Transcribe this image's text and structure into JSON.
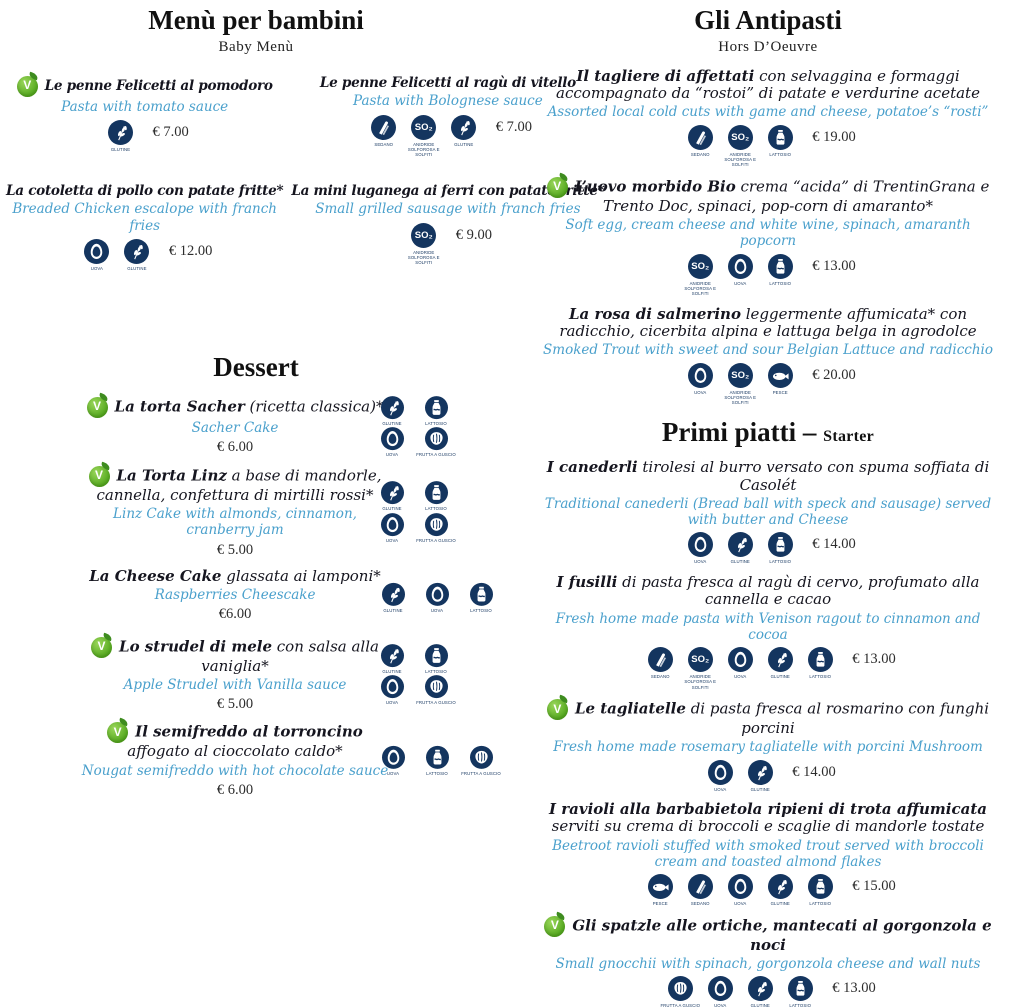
{
  "vegetarian_badge": {
    "label": "V"
  },
  "sulfites_glyph": "SO₂",
  "colors": {
    "translation_blue": "#4aa0cc",
    "icon_navy": "#14355f",
    "badge_green": "#5cb531"
  },
  "allergen_labels": {
    "gluten": "GLUTINE",
    "sulfites": "ANIDRIDE SOLFOROSA E SOLFITI",
    "egg": "UOVA",
    "milk": "LATTOSIO",
    "celery": "SEDANO",
    "fish": "PESCE",
    "nuts": "FRUTTA A GUSCIO"
  },
  "sections": {
    "bambini": {
      "title": "Menù per bambini",
      "subtitle": "Baby Menù",
      "items": [
        {
          "vegetarian": true,
          "name": "Le penne Felicetti al pomodoro",
          "desc": "",
          "translation": "Pasta with tomato sauce",
          "price": "€ 7.00",
          "allergens": [
            "gluten"
          ]
        },
        {
          "vegetarian": false,
          "name": "Le penne Felicetti al ragù di vitello",
          "desc": "",
          "translation": "Pasta with Bolognese sauce",
          "price": "€ 7.00",
          "allergens": [
            "celery",
            "sulfites",
            "gluten"
          ]
        },
        {
          "vegetarian": false,
          "name": "La cotoletta di pollo con patate fritte*",
          "desc": "",
          "translation": "Breaded Chicken escalope with franch fries",
          "price": "€ 12.00",
          "allergens": [
            "egg",
            "gluten"
          ]
        },
        {
          "vegetarian": false,
          "name": "La mini luganega ai ferri con patate fritte*",
          "desc": "",
          "translation": "Small grilled sausage with franch fries",
          "price": "€ 9.00",
          "allergens": [
            "sulfites"
          ]
        }
      ]
    },
    "dessert": {
      "title": "Dessert",
      "items": [
        {
          "vegetarian": true,
          "name": "La torta Sacher",
          "desc": " (ricetta classica)*",
          "translation": "Sacher Cake",
          "price": "€ 6.00",
          "allergens": [
            "gluten",
            "milk",
            "egg",
            "nuts"
          ]
        },
        {
          "vegetarian": true,
          "name": "La Torta Linz",
          "desc": " a base di mandorle, cannella, confettura di mirtilli rossi*",
          "translation": "Linz Cake with almonds, cinnamon, cranberry jam",
          "price": "€ 5.00",
          "allergens": [
            "gluten",
            "milk",
            "egg",
            "nuts"
          ]
        },
        {
          "vegetarian": false,
          "name": "La Cheese Cake",
          "desc": " glassata ai lamponi*",
          "translation": "Raspberries Cheescake",
          "price": "€6.00",
          "allergens": [
            "gluten",
            "egg",
            "milk"
          ]
        },
        {
          "vegetarian": true,
          "name": "Lo strudel di mele",
          "desc": " con salsa alla vaniglia*",
          "translation": "Apple Strudel with Vanilla sauce",
          "price": "€ 5.00",
          "allergens": [
            "gluten",
            "milk",
            "egg",
            "nuts"
          ]
        },
        {
          "vegetarian": true,
          "name": "Il semifreddo al torroncino",
          "desc": " affogato al cioccolato caldo*",
          "translation": "Nougat semifreddo with hot chocolate sauce",
          "price": "€ 6.00",
          "allergens": [
            "egg",
            "milk",
            "nuts"
          ]
        }
      ]
    },
    "antipasti": {
      "title": "Gli Antipasti",
      "subtitle": "Hors D’Oeuvre",
      "items": [
        {
          "vegetarian": false,
          "name": "Il tagliere di affettati",
          "desc": " con selvaggina e formaggi accompagnato da “rostoi” di patate e verdurine acetate",
          "translation": "Assorted local cold cuts with game and cheese, potatoe’s “rosti”",
          "price": "€ 19.00",
          "allergens": [
            "celery",
            "sulfites",
            "milk"
          ]
        },
        {
          "vegetarian": true,
          "name": "L’uovo morbido Bio",
          "desc": " crema “acida” di TrentinGrana e Trento Doc, spinaci, pop-corn di amaranto*",
          "translation": "Soft egg, cream cheese and white wine, spinach, amaranth popcorn",
          "price": "€ 13.00",
          "allergens": [
            "sulfites",
            "egg",
            "milk"
          ]
        },
        {
          "vegetarian": false,
          "name": "La rosa di salmerino",
          "desc": " leggermente affumicata* con radicchio, cicerbita alpina e lattuga belga in agrodolce",
          "translation": "Smoked Trout with sweet and sour Belgian Lattuce and radicchio",
          "price": "€ 20.00",
          "allergens": [
            "egg",
            "sulfites",
            "fish"
          ]
        }
      ]
    },
    "primi": {
      "title": "Primi piatti",
      "dash": "–",
      "subtitle_inline": "Starter",
      "items": [
        {
          "vegetarian": false,
          "name": "I canederli",
          "desc": " tirolesi al burro versato con spuma soffiata di Casolét",
          "translation": "Traditional canederli (Bread ball with speck and sausage) served with butter and Cheese",
          "price": "€ 14.00",
          "allergens": [
            "egg",
            "gluten",
            "milk"
          ]
        },
        {
          "vegetarian": false,
          "name": "I fusilli",
          "desc": " di pasta fresca al ragù di cervo, profumato alla cannella e cacao",
          "translation": "Fresh home made pasta with Venison ragout to cinnamon and cocoa",
          "price": "€ 13.00",
          "allergens": [
            "celery",
            "sulfites",
            "egg",
            "gluten",
            "milk"
          ]
        },
        {
          "vegetarian": true,
          "name": "Le tagliatelle",
          "desc": " di pasta fresca al rosmarino con funghi porcini",
          "translation": "Fresh home made rosemary tagliatelle with porcini Mushroom",
          "price": "€ 14.00",
          "allergens": [
            "egg",
            "gluten"
          ]
        },
        {
          "vegetarian": false,
          "name": "I ravioli alla barbabietola ripieni di trota affumicata",
          "desc": " serviti su crema di broccoli e scaglie di mandorle tostate",
          "translation": "Beetroot ravioli stuffed with smoked trout served with broccoli cream and toasted almond flakes",
          "price": "€ 15.00",
          "allergens": [
            "fish",
            "celery",
            "egg",
            "gluten",
            "milk"
          ]
        },
        {
          "vegetarian": true,
          "name": "Gli spatzle alle ortiche, mantecati al gorgonzola e noci",
          "desc": "",
          "translation": "Small gnocchii with spinach, gorgonzola cheese and wall nuts",
          "price": "€ 13.00",
          "allergens": [
            "nuts",
            "egg",
            "gluten",
            "milk"
          ]
        }
      ]
    }
  }
}
